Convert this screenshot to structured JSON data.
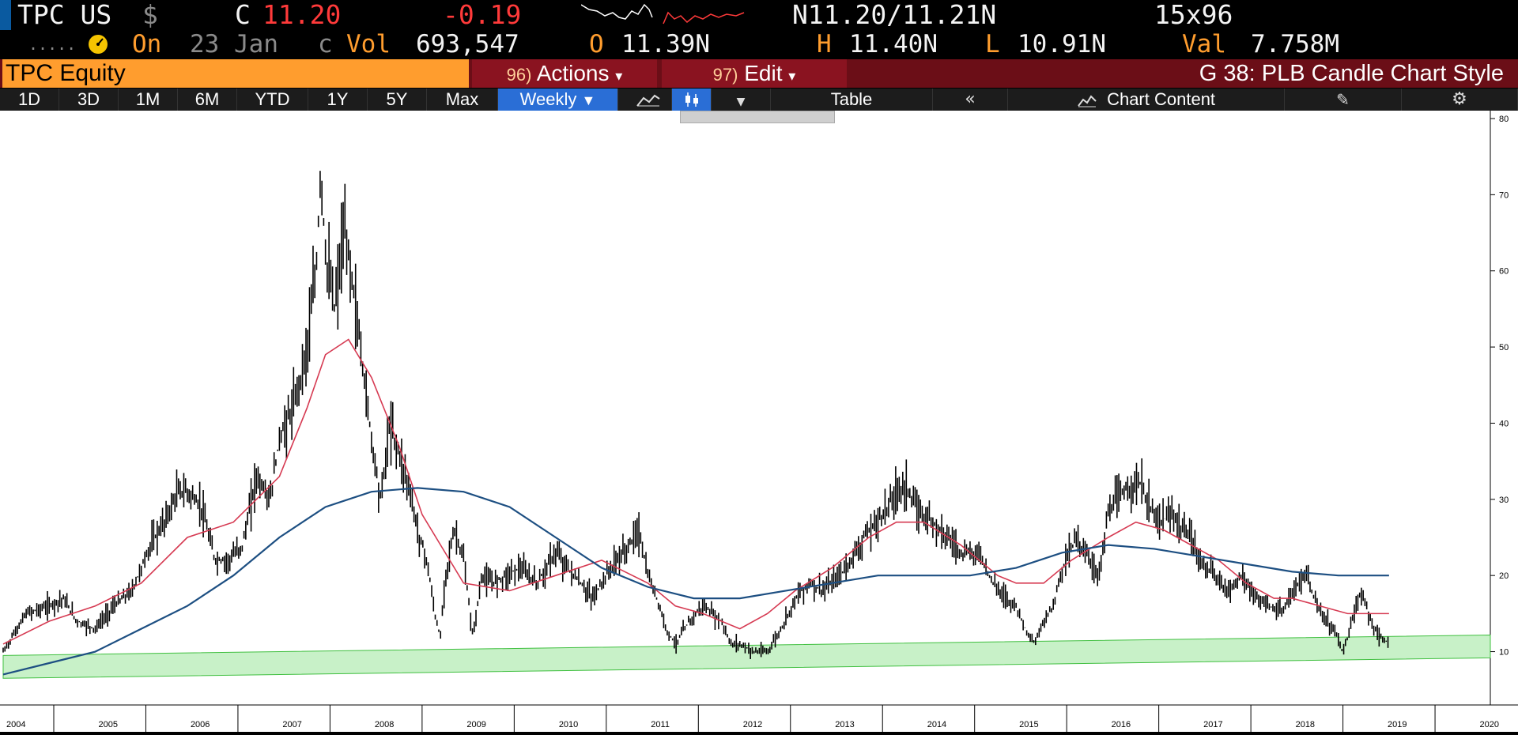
{
  "ticker_row": {
    "ticker": "TPC US",
    "currency": "$",
    "close_label": "C",
    "close_value": "11.20",
    "change": "-0.19",
    "bid_ask": "N11.20/11.21N",
    "size": "15x96"
  },
  "info_row": {
    "dots": ".....",
    "on_label": "On",
    "date": "23 Jan",
    "c_flag": "c",
    "vol_label": "Vol",
    "vol_value": "693,547",
    "open_label": "O",
    "open_value": "11.39N",
    "high_label": "H",
    "high_value": "11.40N",
    "low_label": "L",
    "low_value": "10.91N",
    "val_label": "Val",
    "val_value": "7.758M"
  },
  "command_bar": {
    "security": "TPC Equity",
    "actions_num": "96)",
    "actions_label": "Actions",
    "edit_num": "97)",
    "edit_label": "Edit",
    "chart_style": "G 38: PLB Candle Chart Style"
  },
  "toolbar": {
    "ranges": [
      "1D",
      "3D",
      "1M",
      "6M",
      "YTD",
      "1Y",
      "5Y",
      "Max"
    ],
    "frequency": "Weekly",
    "table_label": "Table",
    "chart_content_label": "Chart Content"
  },
  "colors": {
    "price": "#000000",
    "ma_short": "#d63a52",
    "ma_long": "#1d4f82",
    "support_band": "#9be59b",
    "accent": "#2a6ed6"
  },
  "chart_data": {
    "type": "line",
    "title": "",
    "xlabel": "",
    "ylabel": "",
    "x_tick_labels": [
      "2004",
      "2005",
      "2006",
      "2007",
      "2008",
      "2009",
      "2010",
      "2011",
      "2012",
      "2013",
      "2014",
      "2015",
      "2016",
      "2017",
      "2018",
      "2019",
      "2020"
    ],
    "y_tick_labels": [
      "10",
      "20",
      "30",
      "40",
      "50",
      "60",
      "70",
      "80"
    ],
    "ylim": [
      3,
      80
    ],
    "xlim": [
      2004.0,
      2020.15
    ],
    "grid": false,
    "y_axis_side": "right",
    "series": [
      {
        "role": "price",
        "style": "weekly bars",
        "points": [
          [
            2004.0,
            10
          ],
          [
            2004.1,
            12
          ],
          [
            2004.25,
            15
          ],
          [
            2004.5,
            16
          ],
          [
            2004.65,
            17
          ],
          [
            2004.8,
            14
          ],
          [
            2005.0,
            13
          ],
          [
            2005.2,
            16
          ],
          [
            2005.4,
            18
          ],
          [
            2005.6,
            24
          ],
          [
            2005.75,
            27
          ],
          [
            2005.9,
            31
          ],
          [
            2006.0,
            31
          ],
          [
            2006.15,
            29
          ],
          [
            2006.3,
            22
          ],
          [
            2006.45,
            22
          ],
          [
            2006.6,
            24
          ],
          [
            2006.75,
            33
          ],
          [
            2006.9,
            30
          ],
          [
            2007.0,
            38
          ],
          [
            2007.15,
            42
          ],
          [
            2007.3,
            50
          ],
          [
            2007.4,
            60
          ],
          [
            2007.45,
            74
          ],
          [
            2007.5,
            62
          ],
          [
            2007.6,
            55
          ],
          [
            2007.7,
            65
          ],
          [
            2007.78,
            60
          ],
          [
            2007.9,
            48
          ],
          [
            2008.0,
            38
          ],
          [
            2008.1,
            30
          ],
          [
            2008.2,
            40
          ],
          [
            2008.3,
            36
          ],
          [
            2008.4,
            32
          ],
          [
            2008.5,
            26
          ],
          [
            2008.6,
            22
          ],
          [
            2008.7,
            14
          ],
          [
            2008.75,
            12
          ],
          [
            2008.8,
            20
          ],
          [
            2008.9,
            26
          ],
          [
            2009.0,
            22
          ],
          [
            2009.1,
            12
          ],
          [
            2009.2,
            20
          ],
          [
            2009.3,
            19
          ],
          [
            2009.45,
            20
          ],
          [
            2009.6,
            21
          ],
          [
            2009.8,
            19
          ],
          [
            2010.0,
            23
          ],
          [
            2010.2,
            20
          ],
          [
            2010.4,
            17
          ],
          [
            2010.6,
            21
          ],
          [
            2010.8,
            24
          ],
          [
            2010.9,
            26
          ],
          [
            2011.0,
            20
          ],
          [
            2011.1,
            17
          ],
          [
            2011.2,
            13
          ],
          [
            2011.3,
            11
          ],
          [
            2011.45,
            14
          ],
          [
            2011.6,
            16
          ],
          [
            2011.8,
            14
          ],
          [
            2011.9,
            11
          ],
          [
            2012.0,
            11
          ],
          [
            2012.15,
            10
          ],
          [
            2012.3,
            10
          ],
          [
            2012.45,
            13
          ],
          [
            2012.6,
            17
          ],
          [
            2012.75,
            19
          ],
          [
            2012.9,
            18
          ],
          [
            2013.0,
            19
          ],
          [
            2013.15,
            21
          ],
          [
            2013.35,
            25
          ],
          [
            2013.55,
            28
          ],
          [
            2013.7,
            31
          ],
          [
            2013.8,
            32
          ],
          [
            2013.9,
            29
          ],
          [
            2014.0,
            28
          ],
          [
            2014.2,
            26
          ],
          [
            2014.4,
            23
          ],
          [
            2014.6,
            23
          ],
          [
            2014.75,
            19
          ],
          [
            2014.9,
            17
          ],
          [
            2015.0,
            16
          ],
          [
            2015.1,
            13
          ],
          [
            2015.2,
            11
          ],
          [
            2015.3,
            14
          ],
          [
            2015.4,
            16
          ],
          [
            2015.5,
            21
          ],
          [
            2015.65,
            25
          ],
          [
            2015.8,
            22
          ],
          [
            2015.9,
            20
          ],
          [
            2016.0,
            28
          ],
          [
            2016.1,
            30
          ],
          [
            2016.25,
            32
          ],
          [
            2016.35,
            32
          ],
          [
            2016.45,
            29
          ],
          [
            2016.55,
            27
          ],
          [
            2016.7,
            28
          ],
          [
            2016.8,
            26
          ],
          [
            2016.9,
            25
          ],
          [
            2017.0,
            22
          ],
          [
            2017.15,
            20
          ],
          [
            2017.3,
            18
          ],
          [
            2017.45,
            20
          ],
          [
            2017.6,
            17
          ],
          [
            2017.75,
            16
          ],
          [
            2017.9,
            15
          ],
          [
            2018.0,
            18
          ],
          [
            2018.15,
            20
          ],
          [
            2018.3,
            15
          ],
          [
            2018.45,
            13
          ],
          [
            2018.55,
            10
          ],
          [
            2018.65,
            14
          ],
          [
            2018.75,
            18
          ],
          [
            2018.85,
            14
          ],
          [
            2018.95,
            12
          ],
          [
            2019.05,
            11
          ]
        ]
      },
      {
        "role": "ma_short",
        "points": [
          [
            2004.0,
            11
          ],
          [
            2004.5,
            14
          ],
          [
            2005.0,
            16
          ],
          [
            2005.5,
            19
          ],
          [
            2006.0,
            25
          ],
          [
            2006.5,
            27
          ],
          [
            2007.0,
            33
          ],
          [
            2007.3,
            42
          ],
          [
            2007.5,
            49
          ],
          [
            2007.75,
            51
          ],
          [
            2008.0,
            46
          ],
          [
            2008.3,
            37
          ],
          [
            2008.55,
            28
          ],
          [
            2008.8,
            23
          ],
          [
            2009.0,
            19
          ],
          [
            2009.5,
            18
          ],
          [
            2010.0,
            20
          ],
          [
            2010.5,
            22
          ],
          [
            2011.0,
            19
          ],
          [
            2011.3,
            16
          ],
          [
            2011.6,
            15
          ],
          [
            2012.0,
            13
          ],
          [
            2012.3,
            15
          ],
          [
            2012.6,
            18
          ],
          [
            2013.0,
            21
          ],
          [
            2013.4,
            25
          ],
          [
            2013.7,
            27
          ],
          [
            2014.0,
            27
          ],
          [
            2014.4,
            24
          ],
          [
            2014.8,
            20
          ],
          [
            2015.0,
            19
          ],
          [
            2015.3,
            19
          ],
          [
            2015.6,
            22
          ],
          [
            2016.0,
            25
          ],
          [
            2016.3,
            27
          ],
          [
            2016.6,
            26
          ],
          [
            2016.9,
            24
          ],
          [
            2017.2,
            22
          ],
          [
            2017.5,
            19
          ],
          [
            2017.8,
            17
          ],
          [
            2018.0,
            17
          ],
          [
            2018.3,
            16
          ],
          [
            2018.6,
            15
          ],
          [
            2018.9,
            15
          ],
          [
            2019.05,
            15
          ]
        ]
      },
      {
        "role": "ma_long",
        "points": [
          [
            2004.0,
            7
          ],
          [
            2004.5,
            8.5
          ],
          [
            2005.0,
            10
          ],
          [
            2005.5,
            13
          ],
          [
            2006.0,
            16
          ],
          [
            2006.5,
            20
          ],
          [
            2007.0,
            25
          ],
          [
            2007.5,
            29
          ],
          [
            2008.0,
            31
          ],
          [
            2008.5,
            31.5
          ],
          [
            2009.0,
            31
          ],
          [
            2009.5,
            29
          ],
          [
            2010.0,
            25
          ],
          [
            2010.5,
            21
          ],
          [
            2011.0,
            18.5
          ],
          [
            2011.5,
            17
          ],
          [
            2012.0,
            17
          ],
          [
            2012.5,
            18
          ],
          [
            2013.0,
            19
          ],
          [
            2013.5,
            20
          ],
          [
            2014.0,
            20
          ],
          [
            2014.5,
            20
          ],
          [
            2015.0,
            21
          ],
          [
            2015.5,
            23
          ],
          [
            2016.0,
            24
          ],
          [
            2016.5,
            23.5
          ],
          [
            2017.0,
            22.5
          ],
          [
            2017.5,
            21.5
          ],
          [
            2018.0,
            20.5
          ],
          [
            2018.5,
            20
          ],
          [
            2019.05,
            20
          ]
        ]
      },
      {
        "role": "support_band",
        "band": [
          [
            2004.0,
            6.5,
            9.5
          ],
          [
            2019.05,
            9,
            12
          ]
        ]
      }
    ]
  }
}
